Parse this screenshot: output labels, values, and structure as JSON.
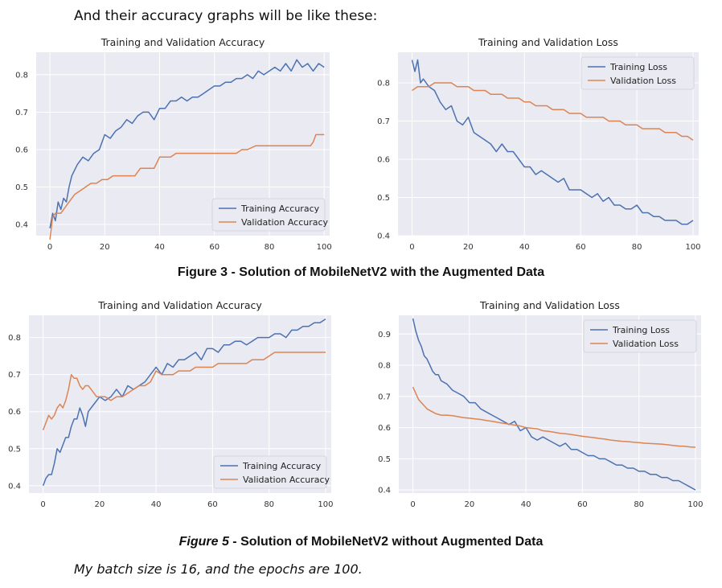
{
  "intro_text": "And their accuracy graphs will be like these:",
  "caption_fig3": {
    "number": "Figure 3",
    "text": " - Solution of MobileNetV2 with the Augmented Data"
  },
  "caption_fig5": {
    "number": "Figure 5",
    "text": " - Solution of MobileNetV2 without Augmented Data"
  },
  "note_text": "My batch size is 16, and the epochs are 100.",
  "colors": {
    "training": "#4c72b0",
    "validation": "#dd8452",
    "panel_bg": "#eaeaf2",
    "grid": "#ffffff"
  },
  "chart_data": [
    {
      "id": "fig3-accuracy",
      "type": "line",
      "title": "Training and Validation Accuracy",
      "xlim": [
        -5,
        102
      ],
      "ylim": [
        0.37,
        0.86
      ],
      "xticks": [
        0,
        20,
        40,
        60,
        80,
        100
      ],
      "yticks": [
        0.4,
        0.5,
        0.6,
        0.7,
        0.8
      ],
      "legend": "lower-right",
      "series": [
        {
          "name": "Training Accuracy",
          "color": "#4c72b0",
          "x": [
            0,
            1,
            2,
            3,
            4,
            5,
            6,
            7,
            8,
            10,
            12,
            14,
            16,
            18,
            20,
            22,
            24,
            26,
            28,
            30,
            32,
            34,
            36,
            38,
            40,
            42,
            44,
            46,
            48,
            50,
            52,
            54,
            56,
            58,
            60,
            62,
            64,
            66,
            68,
            70,
            72,
            74,
            76,
            78,
            80,
            82,
            84,
            86,
            88,
            90,
            92,
            94,
            96,
            98,
            100
          ],
          "y": [
            0.39,
            0.43,
            0.41,
            0.46,
            0.44,
            0.47,
            0.46,
            0.5,
            0.53,
            0.56,
            0.58,
            0.57,
            0.59,
            0.6,
            0.64,
            0.63,
            0.65,
            0.66,
            0.68,
            0.67,
            0.69,
            0.7,
            0.7,
            0.68,
            0.71,
            0.71,
            0.73,
            0.73,
            0.74,
            0.73,
            0.74,
            0.74,
            0.75,
            0.76,
            0.77,
            0.77,
            0.78,
            0.78,
            0.79,
            0.79,
            0.8,
            0.79,
            0.81,
            0.8,
            0.81,
            0.82,
            0.81,
            0.83,
            0.81,
            0.84,
            0.82,
            0.83,
            0.81,
            0.83,
            0.82
          ]
        },
        {
          "name": "Validation Accuracy",
          "color": "#dd8452",
          "x": [
            0,
            1,
            2,
            4,
            5,
            7,
            9,
            11,
            13,
            15,
            17,
            19,
            21,
            23,
            25,
            28,
            31,
            33,
            36,
            38,
            40,
            42,
            44,
            46,
            48,
            50,
            52,
            54,
            56,
            58,
            60,
            62,
            64,
            66,
            68,
            70,
            72,
            75,
            78,
            80,
            85,
            88,
            90,
            92,
            95,
            96,
            97,
            98,
            100
          ],
          "y": [
            0.36,
            0.42,
            0.43,
            0.43,
            0.44,
            0.46,
            0.48,
            0.49,
            0.5,
            0.51,
            0.51,
            0.52,
            0.52,
            0.53,
            0.53,
            0.53,
            0.53,
            0.55,
            0.55,
            0.55,
            0.58,
            0.58,
            0.58,
            0.59,
            0.59,
            0.59,
            0.59,
            0.59,
            0.59,
            0.59,
            0.59,
            0.59,
            0.59,
            0.59,
            0.59,
            0.6,
            0.6,
            0.61,
            0.61,
            0.61,
            0.61,
            0.61,
            0.61,
            0.61,
            0.61,
            0.62,
            0.64,
            0.64,
            0.64
          ]
        }
      ]
    },
    {
      "id": "fig3-loss",
      "type": "line",
      "title": "Training and Validation Loss",
      "xlim": [
        -5,
        102
      ],
      "ylim": [
        0.4,
        0.88
      ],
      "xticks": [
        0,
        20,
        40,
        60,
        80,
        100
      ],
      "yticks": [
        0.4,
        0.5,
        0.6,
        0.7,
        0.8
      ],
      "legend": "upper-right",
      "series": [
        {
          "name": "Training Loss",
          "color": "#4c72b0",
          "x": [
            0,
            1,
            2,
            3,
            4,
            6,
            8,
            10,
            12,
            14,
            16,
            18,
            20,
            22,
            24,
            26,
            28,
            30,
            32,
            34,
            36,
            38,
            40,
            42,
            44,
            46,
            48,
            50,
            52,
            54,
            56,
            58,
            60,
            62,
            64,
            66,
            68,
            70,
            72,
            74,
            76,
            78,
            80,
            82,
            84,
            86,
            88,
            90,
            92,
            94,
            96,
            98,
            100
          ],
          "y": [
            0.86,
            0.83,
            0.86,
            0.8,
            0.81,
            0.79,
            0.78,
            0.75,
            0.73,
            0.74,
            0.7,
            0.69,
            0.71,
            0.67,
            0.66,
            0.65,
            0.64,
            0.62,
            0.64,
            0.62,
            0.62,
            0.6,
            0.58,
            0.58,
            0.56,
            0.57,
            0.56,
            0.55,
            0.54,
            0.55,
            0.52,
            0.52,
            0.52,
            0.51,
            0.5,
            0.51,
            0.49,
            0.5,
            0.48,
            0.48,
            0.47,
            0.47,
            0.48,
            0.46,
            0.46,
            0.45,
            0.45,
            0.44,
            0.44,
            0.44,
            0.43,
            0.43,
            0.44
          ]
        },
        {
          "name": "Validation Loss",
          "color": "#dd8452",
          "x": [
            0,
            2,
            4,
            6,
            8,
            10,
            12,
            14,
            16,
            18,
            20,
            22,
            24,
            26,
            28,
            30,
            32,
            34,
            36,
            38,
            40,
            42,
            44,
            46,
            48,
            50,
            52,
            54,
            56,
            58,
            60,
            62,
            64,
            66,
            68,
            70,
            72,
            74,
            76,
            78,
            80,
            82,
            84,
            86,
            88,
            90,
            92,
            94,
            96,
            98,
            100
          ],
          "y": [
            0.78,
            0.79,
            0.79,
            0.79,
            0.8,
            0.8,
            0.8,
            0.8,
            0.79,
            0.79,
            0.79,
            0.78,
            0.78,
            0.78,
            0.77,
            0.77,
            0.77,
            0.76,
            0.76,
            0.76,
            0.75,
            0.75,
            0.74,
            0.74,
            0.74,
            0.73,
            0.73,
            0.73,
            0.72,
            0.72,
            0.72,
            0.71,
            0.71,
            0.71,
            0.71,
            0.7,
            0.7,
            0.7,
            0.69,
            0.69,
            0.69,
            0.68,
            0.68,
            0.68,
            0.68,
            0.67,
            0.67,
            0.67,
            0.66,
            0.66,
            0.65
          ]
        }
      ]
    },
    {
      "id": "fig5-accuracy",
      "type": "line",
      "title": "Training and Validation Accuracy",
      "xlim": [
        -5,
        102
      ],
      "ylim": [
        0.38,
        0.86
      ],
      "xticks": [
        0,
        20,
        40,
        60,
        80,
        100
      ],
      "yticks": [
        0.4,
        0.5,
        0.6,
        0.7,
        0.8
      ],
      "legend": "lower-right",
      "series": [
        {
          "name": "Training Accuracy",
          "color": "#4c72b0",
          "x": [
            0,
            1,
            2,
            3,
            4,
            5,
            6,
            7,
            8,
            9,
            10,
            11,
            12,
            13,
            14,
            15,
            16,
            18,
            20,
            22,
            24,
            26,
            28,
            30,
            32,
            34,
            36,
            38,
            40,
            42,
            44,
            46,
            48,
            50,
            52,
            54,
            56,
            58,
            60,
            62,
            64,
            66,
            68,
            70,
            72,
            74,
            76,
            78,
            80,
            82,
            84,
            86,
            88,
            90,
            92,
            94,
            96,
            98,
            100
          ],
          "y": [
            0.4,
            0.42,
            0.43,
            0.43,
            0.46,
            0.5,
            0.49,
            0.51,
            0.53,
            0.53,
            0.56,
            0.58,
            0.58,
            0.61,
            0.59,
            0.56,
            0.6,
            0.62,
            0.64,
            0.63,
            0.64,
            0.66,
            0.64,
            0.67,
            0.66,
            0.67,
            0.68,
            0.7,
            0.72,
            0.7,
            0.73,
            0.72,
            0.74,
            0.74,
            0.75,
            0.76,
            0.74,
            0.77,
            0.77,
            0.76,
            0.78,
            0.78,
            0.79,
            0.79,
            0.78,
            0.79,
            0.8,
            0.8,
            0.8,
            0.81,
            0.81,
            0.8,
            0.82,
            0.82,
            0.83,
            0.83,
            0.84,
            0.84,
            0.85
          ]
        },
        {
          "name": "Validation Accuracy",
          "color": "#dd8452",
          "x": [
            0,
            1,
            2,
            3,
            4,
            5,
            6,
            7,
            8,
            9,
            10,
            11,
            12,
            13,
            14,
            15,
            16,
            17,
            18,
            19,
            20,
            22,
            24,
            26,
            28,
            30,
            32,
            34,
            36,
            38,
            40,
            42,
            44,
            46,
            48,
            50,
            52,
            54,
            56,
            58,
            60,
            62,
            64,
            66,
            68,
            70,
            72,
            74,
            76,
            78,
            80,
            82,
            84,
            86,
            88,
            90,
            92,
            94,
            96,
            98,
            100
          ],
          "y": [
            0.55,
            0.57,
            0.59,
            0.58,
            0.59,
            0.61,
            0.62,
            0.61,
            0.63,
            0.66,
            0.7,
            0.69,
            0.69,
            0.67,
            0.66,
            0.67,
            0.67,
            0.66,
            0.65,
            0.64,
            0.64,
            0.64,
            0.63,
            0.64,
            0.64,
            0.65,
            0.66,
            0.67,
            0.67,
            0.68,
            0.71,
            0.7,
            0.7,
            0.7,
            0.71,
            0.71,
            0.71,
            0.72,
            0.72,
            0.72,
            0.72,
            0.73,
            0.73,
            0.73,
            0.73,
            0.73,
            0.73,
            0.74,
            0.74,
            0.74,
            0.75,
            0.76,
            0.76,
            0.76,
            0.76,
            0.76,
            0.76,
            0.76,
            0.76,
            0.76,
            0.76
          ]
        }
      ]
    },
    {
      "id": "fig5-loss",
      "type": "line",
      "title": "Training and Validation Loss",
      "xlim": [
        -5,
        102
      ],
      "ylim": [
        0.39,
        0.96
      ],
      "xticks": [
        0,
        20,
        40,
        60,
        80,
        100
      ],
      "yticks": [
        0.4,
        0.5,
        0.6,
        0.7,
        0.8,
        0.9
      ],
      "legend": "upper-right",
      "series": [
        {
          "name": "Training Loss",
          "color": "#4c72b0",
          "x": [
            0,
            1,
            2,
            3,
            4,
            5,
            6,
            7,
            8,
            9,
            10,
            12,
            14,
            16,
            18,
            20,
            22,
            24,
            26,
            28,
            30,
            32,
            34,
            36,
            38,
            40,
            42,
            44,
            46,
            48,
            50,
            52,
            54,
            56,
            58,
            60,
            62,
            64,
            66,
            68,
            70,
            72,
            74,
            76,
            78,
            80,
            82,
            84,
            86,
            88,
            90,
            92,
            94,
            96,
            98,
            100
          ],
          "y": [
            0.95,
            0.91,
            0.88,
            0.86,
            0.83,
            0.82,
            0.8,
            0.78,
            0.77,
            0.77,
            0.75,
            0.74,
            0.72,
            0.71,
            0.7,
            0.68,
            0.68,
            0.66,
            0.65,
            0.64,
            0.63,
            0.62,
            0.61,
            0.62,
            0.59,
            0.6,
            0.57,
            0.56,
            0.57,
            0.56,
            0.55,
            0.54,
            0.55,
            0.53,
            0.53,
            0.52,
            0.51,
            0.51,
            0.5,
            0.5,
            0.49,
            0.48,
            0.48,
            0.47,
            0.47,
            0.46,
            0.46,
            0.45,
            0.45,
            0.44,
            0.44,
            0.43,
            0.43,
            0.42,
            0.41,
            0.4
          ]
        },
        {
          "name": "Validation Loss",
          "color": "#dd8452",
          "x": [
            0,
            1,
            2,
            3,
            4,
            5,
            6,
            7,
            8,
            10,
            12,
            14,
            16,
            18,
            20,
            22,
            24,
            26,
            28,
            30,
            32,
            34,
            36,
            38,
            40,
            42,
            44,
            46,
            48,
            50,
            52,
            54,
            56,
            58,
            60,
            62,
            64,
            66,
            68,
            70,
            72,
            74,
            76,
            78,
            80,
            82,
            84,
            86,
            88,
            90,
            92,
            94,
            96,
            98,
            100
          ],
          "y": [
            0.73,
            0.71,
            0.69,
            0.68,
            0.67,
            0.66,
            0.655,
            0.65,
            0.645,
            0.64,
            0.64,
            0.638,
            0.635,
            0.632,
            0.63,
            0.628,
            0.626,
            0.623,
            0.62,
            0.617,
            0.614,
            0.611,
            0.608,
            0.605,
            0.6,
            0.598,
            0.596,
            0.59,
            0.588,
            0.585,
            0.582,
            0.58,
            0.578,
            0.575,
            0.572,
            0.57,
            0.568,
            0.565,
            0.563,
            0.56,
            0.558,
            0.556,
            0.555,
            0.553,
            0.552,
            0.55,
            0.549,
            0.548,
            0.547,
            0.545,
            0.543,
            0.541,
            0.54,
            0.538,
            0.537
          ]
        }
      ]
    }
  ]
}
